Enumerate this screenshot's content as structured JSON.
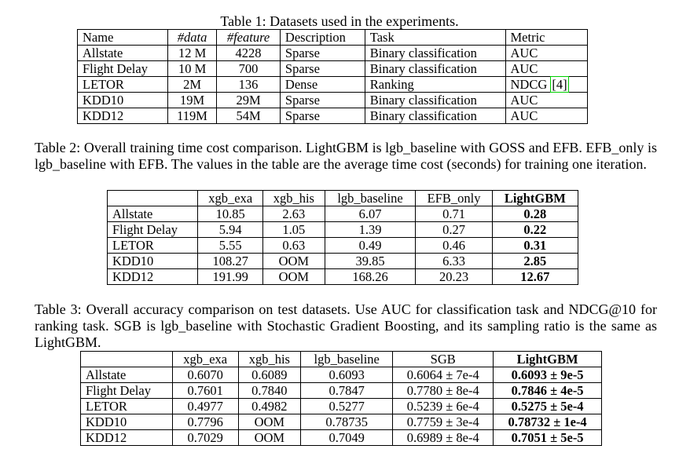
{
  "table1": {
    "caption": "Table 1: Datasets used in the experiments.",
    "headers": [
      "Name",
      "#data",
      "#feature",
      "Description",
      "Task",
      "Metric"
    ],
    "rows": [
      [
        "Allstate",
        "12 M",
        "4228",
        "Sparse",
        "Binary classification",
        "AUC"
      ],
      [
        "Flight Delay",
        "10 M",
        "700",
        "Sparse",
        "Binary classification",
        "AUC"
      ],
      [
        "LETOR",
        "2M",
        "136",
        "Dense",
        "Ranking",
        "NDCG"
      ],
      [
        "KDD10",
        "19M",
        "29M",
        "Sparse",
        "Binary classification",
        "AUC"
      ],
      [
        "KDD12",
        "119M",
        "54M",
        "Sparse",
        "Binary classification",
        "AUC"
      ]
    ],
    "citation": "4"
  },
  "table2": {
    "caption": "Table 2: Overall training time cost comparison. LightGBM is lgb_baseline with GOSS and EFB. EFB_only is lgb_baseline with EFB. The values in the table are the average time cost (seconds) for training one iteration.",
    "headers": [
      "",
      "xgb_exa",
      "xgb_his",
      "lgb_baseline",
      "EFB_only",
      "LightGBM"
    ],
    "rows": [
      [
        "Allstate",
        "10.85",
        "2.63",
        "6.07",
        "0.71",
        "0.28"
      ],
      [
        "Flight Delay",
        "5.94",
        "1.05",
        "1.39",
        "0.27",
        "0.22"
      ],
      [
        "LETOR",
        "5.55",
        "0.63",
        "0.49",
        "0.46",
        "0.31"
      ],
      [
        "KDD10",
        "108.27",
        "OOM",
        "39.85",
        "6.33",
        "2.85"
      ],
      [
        "KDD12",
        "191.99",
        "OOM",
        "168.26",
        "20.23",
        "12.67"
      ]
    ]
  },
  "table3": {
    "caption": "Table 3: Overall accuracy comparison on test datasets. Use AUC for classification task and NDCG@10 for ranking task. SGB is lgb_baseline with Stochastic Gradient Boosting, and its sampling ratio is the same as LightGBM.",
    "headers": [
      "",
      "xgb_exa",
      "xgb_his",
      "lgb_baseline",
      "SGB",
      "LightGBM"
    ],
    "rows": [
      [
        "Allstate",
        "0.6070",
        "0.6089",
        "0.6093",
        "0.6064 ± 7e-4",
        "0.6093 ± 9e-5"
      ],
      [
        "Flight Delay",
        "0.7601",
        "0.7840",
        "0.7847",
        "0.7780 ± 8e-4",
        "0.7846 ± 4e-5"
      ],
      [
        "LETOR",
        "0.4977",
        "0.4982",
        "0.5277",
        "0.5239 ± 6e-4",
        "0.5275 ± 5e-4"
      ],
      [
        "KDD10",
        "0.7796",
        "OOM",
        "0.78735",
        "0.7759 ± 3e-4",
        "0.78732 ± 1e-4"
      ],
      [
        "KDD12",
        "0.7029",
        "OOM",
        "0.7049",
        "0.6989 ± 8e-4",
        "0.7051 ± 5e-5"
      ]
    ]
  }
}
